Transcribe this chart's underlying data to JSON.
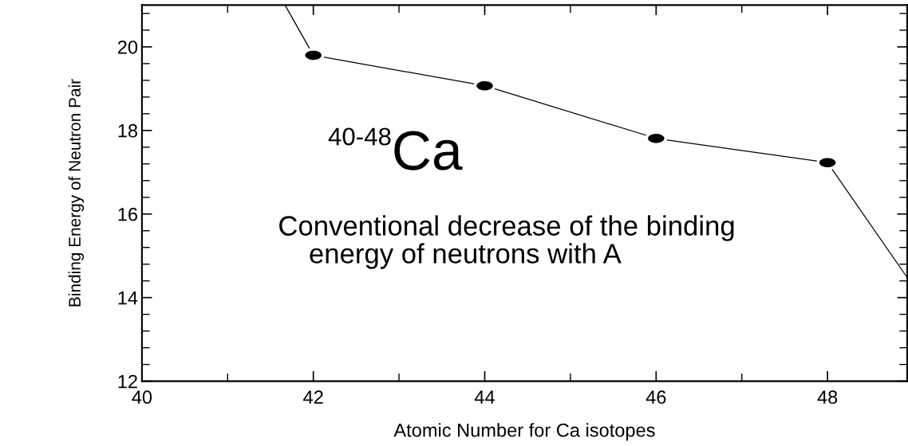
{
  "chart_data": {
    "type": "line",
    "xlabel": "Atomic Number for Ca isotopes",
    "ylabel": "Binding Energy of Neutron Pair",
    "xlim": [
      40,
      48.93
    ],
    "ylim": [
      12,
      21
    ],
    "xticks": [
      40,
      42,
      44,
      46,
      48
    ],
    "yticks": [
      12,
      14,
      16,
      18,
      20
    ],
    "series": [
      {
        "color": "#000000",
        "marker": "none",
        "x": [
          41.67,
          42,
          44,
          46,
          48,
          48.93
        ],
        "values": [
          21,
          19.8,
          19.07,
          17.81,
          17.23,
          14.48
        ]
      },
      {
        "type": "scatter",
        "color": "#000000",
        "marker": "circle",
        "x": [
          42,
          44,
          46,
          48
        ],
        "values": [
          19.8,
          19.07,
          17.81,
          17.23
        ]
      }
    ],
    "annotations": [
      "$^{40-48}$Ca",
      "Conventional decrease of the binding\n    energy of neutrons with A"
    ]
  }
}
